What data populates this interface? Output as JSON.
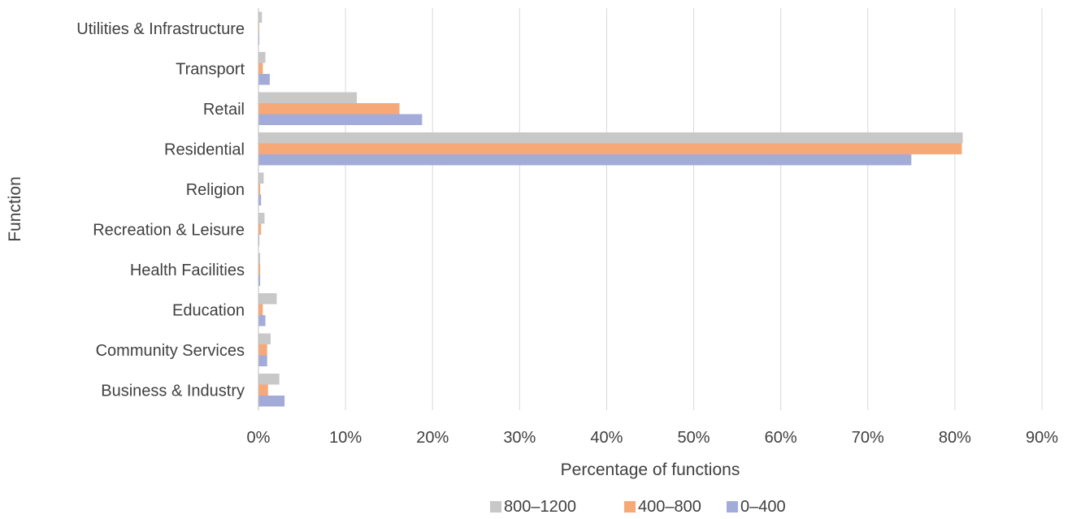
{
  "chart_data": {
    "type": "bar",
    "orientation": "horizontal",
    "title": "",
    "xlabel": "Percentage of functions",
    "ylabel": "Function",
    "xlim": [
      0,
      90
    ],
    "x_ticks": [
      "0%",
      "10%",
      "20%",
      "30%",
      "40%",
      "50%",
      "60%",
      "70%",
      "80%",
      "90%"
    ],
    "grid": true,
    "legend_position": "bottom",
    "categories": [
      "Utilities & Infrastructure",
      "Transport",
      "Retail",
      "Residential",
      "Religion",
      "Recreation & Leisure",
      "Health Facilities",
      "Education",
      "Community Services",
      "Business & Industry"
    ],
    "series": [
      {
        "name": "800–1200",
        "color": "#c8c8c8",
        "values": [
          0.4,
          0.8,
          11.3,
          80.9,
          0.6,
          0.7,
          0.2,
          2.1,
          1.4,
          2.4
        ]
      },
      {
        "name": "400–800",
        "color": "#f7a877",
        "values": [
          0.1,
          0.5,
          16.2,
          80.8,
          0.2,
          0.3,
          0.2,
          0.5,
          1.0,
          1.1
        ]
      },
      {
        "name": "0–400",
        "color": "#a3acd9",
        "values": [
          0.1,
          1.3,
          18.8,
          75.0,
          0.3,
          0.1,
          0.2,
          0.8,
          1.0,
          3.0
        ]
      }
    ]
  }
}
